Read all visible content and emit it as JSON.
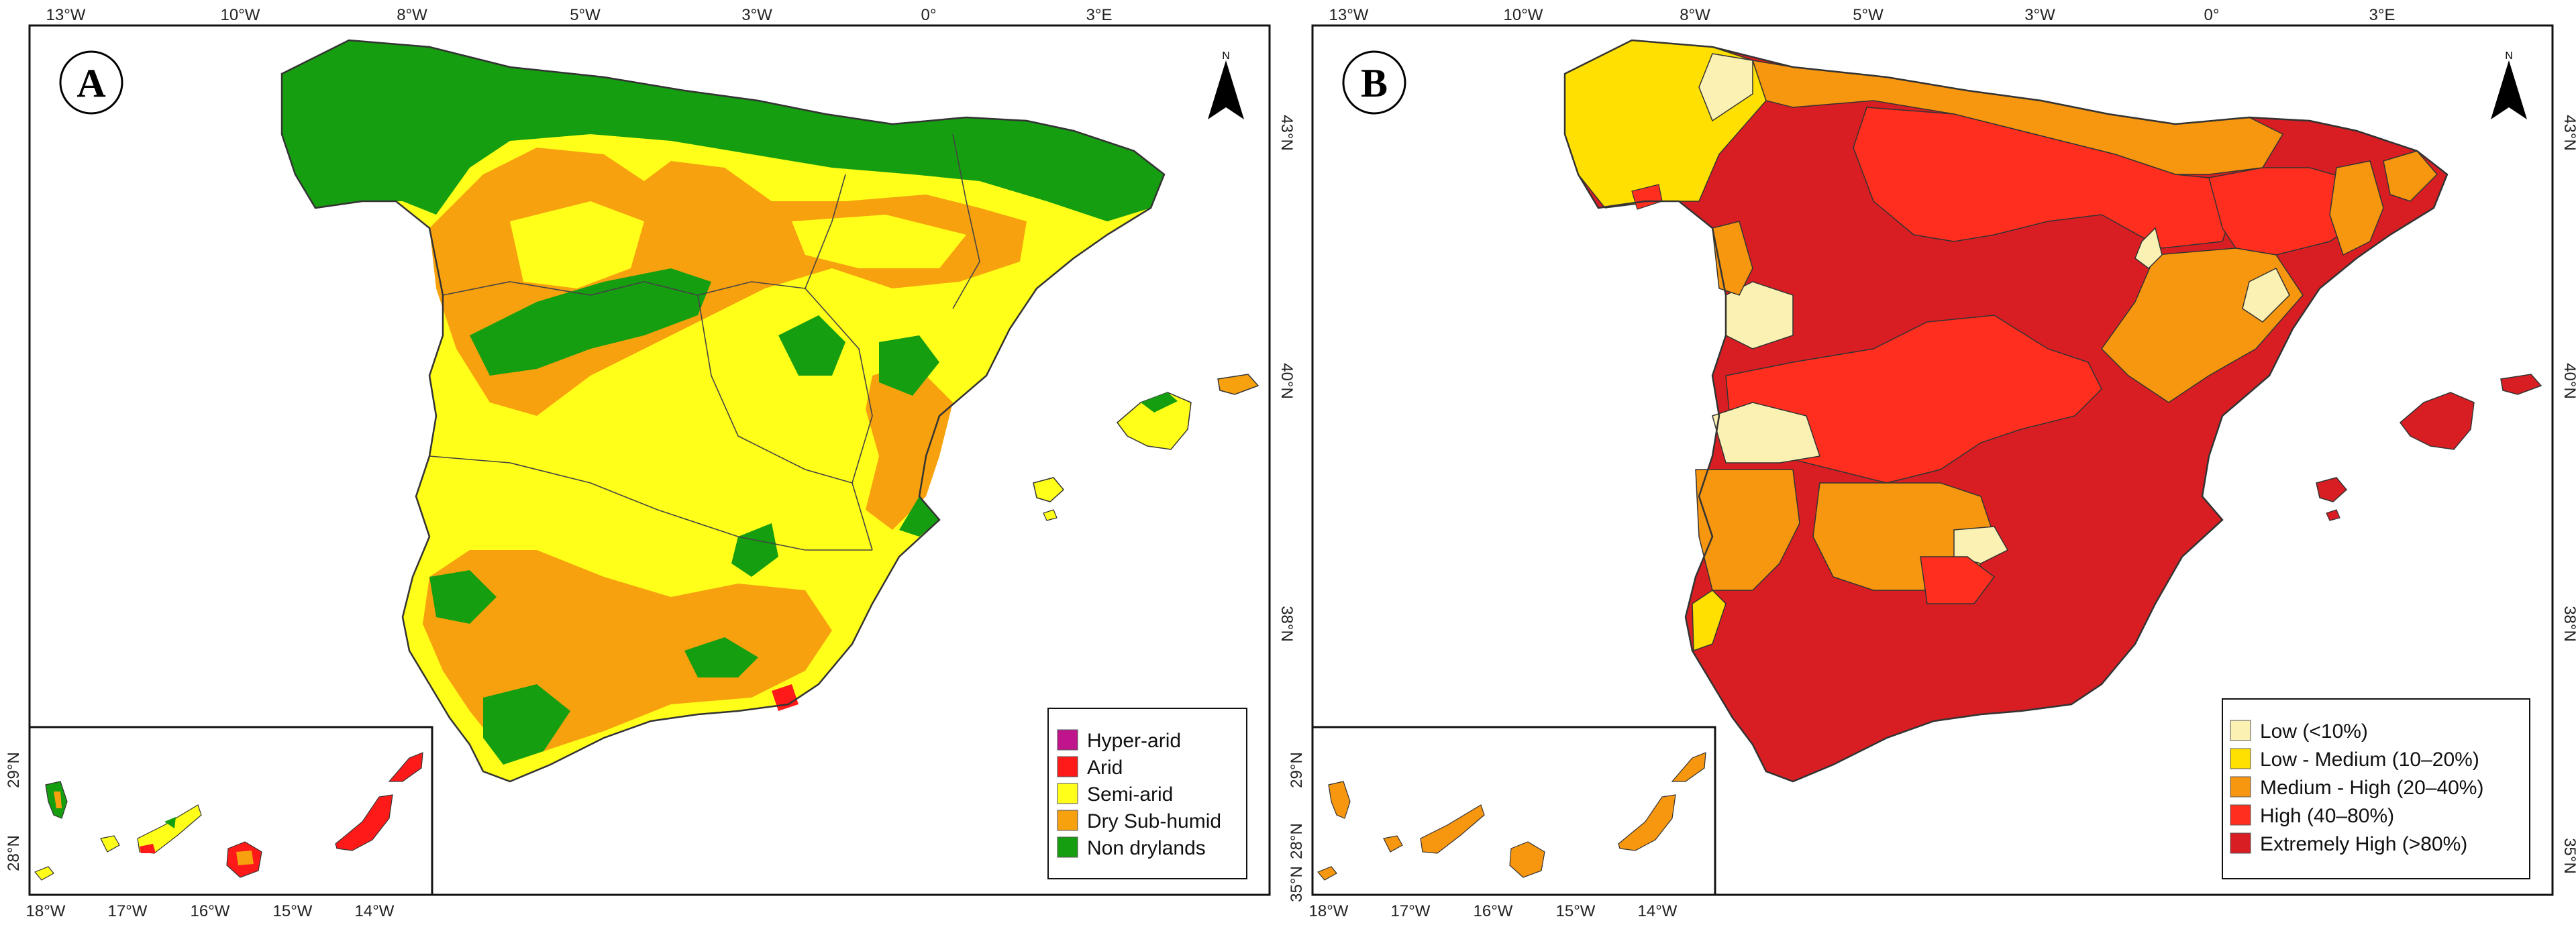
{
  "panels": [
    {
      "label": "A",
      "top_ticks": [
        "13°W",
        "10°W",
        "8°W",
        "5°W",
        "3°W",
        "0°",
        "3°E"
      ],
      "right_ticks": [
        "43°N",
        "40°N",
        "38°N"
      ],
      "inset_bottom_ticks": [
        "18°W",
        "17°W",
        "16°W",
        "15°W",
        "14°W"
      ],
      "inset_left_ticks": [
        "29°N",
        "28°N"
      ],
      "legend": [
        {
          "label": "Hyper-arid",
          "color": "#c0148c"
        },
        {
          "label": "Arid",
          "color": "#ff1a1a"
        },
        {
          "label": "Semi-arid",
          "color": "#ffff1a"
        },
        {
          "label": "Dry Sub-humid",
          "color": "#f7a10f"
        },
        {
          "label": "Non drylands",
          "color": "#159e10"
        }
      ]
    },
    {
      "label": "B",
      "top_ticks": [
        "13°W",
        "10°W",
        "8°W",
        "5°W",
        "3°W",
        "0°",
        "3°E"
      ],
      "right_ticks": [
        "43°N",
        "40°N",
        "38°N",
        "35°N"
      ],
      "inset_bottom_ticks": [
        "18°W",
        "17°W",
        "16°W",
        "15°W",
        "14°W"
      ],
      "inset_left_ticks": [
        "29°N",
        "28°N",
        "35°N"
      ],
      "legend": [
        {
          "label": "Low (<10%)",
          "color": "#fbf1b3"
        },
        {
          "label": "Low - Medium (10–20%)",
          "color": "#ffe000"
        },
        {
          "label": "Medium - High (20–40%)",
          "color": "#f7960f"
        },
        {
          "label": "High (40–80%)",
          "color": "#ff2e1e"
        },
        {
          "label": "Extremely High (>80%)",
          "color": "#d81e23"
        }
      ]
    }
  ],
  "north_arrow_letter": "N",
  "colors": {
    "frame": "#111111",
    "a_base": "#ffff1a",
    "a_dry": "#f7a10f",
    "a_green": "#159e10",
    "a_arid": "#ff1a1a",
    "b_low": "#fbf1b3",
    "b_lowmed": "#ffe000",
    "b_medhigh": "#f7960f",
    "b_high": "#ff2e1e",
    "b_extreme": "#d81e23"
  }
}
